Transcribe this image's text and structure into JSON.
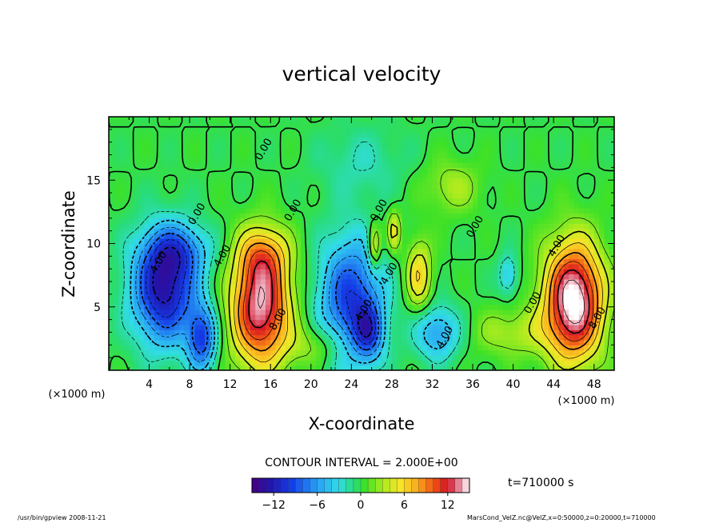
{
  "chart_data": {
    "type": "heatmap",
    "title": "vertical velocity",
    "xlabel": "X-coordinate",
    "ylabel": "Z-coordinate",
    "x_unit": "(×1000 m)",
    "y_unit": "(×1000 m)",
    "xlim": [
      0,
      50
    ],
    "ylim": [
      0,
      20
    ],
    "x_ticks": [
      4,
      8,
      12,
      16,
      20,
      24,
      28,
      32,
      36,
      40,
      44,
      48
    ],
    "y_ticks": [
      5,
      10,
      15
    ],
    "contour_interval_text": "CONTOUR INTERVAL = 2.000E+00",
    "contour_labels": [
      {
        "text": "0.00",
        "x": 15.6,
        "y": 17.3
      },
      {
        "text": "0.00",
        "x": 18.5,
        "y": 12.5
      },
      {
        "text": "0.00",
        "x": 9.0,
        "y": 12.2
      },
      {
        "text": "0.00",
        "x": 27.0,
        "y": 12.5
      },
      {
        "text": "0.00",
        "x": 36.5,
        "y": 11.2
      },
      {
        "text": "4.00",
        "x": 11.5,
        "y": 8.9
      },
      {
        "text": "4.00",
        "x": 5.2,
        "y": 8.4
      },
      {
        "text": "4.00",
        "x": 28.0,
        "y": 7.5
      },
      {
        "text": "4.00",
        "x": 25.5,
        "y": 4.6
      },
      {
        "text": "4.00",
        "x": 33.5,
        "y": 2.5
      },
      {
        "text": "4.00",
        "x": 44.6,
        "y": 9.7
      },
      {
        "text": "0.00",
        "x": 42.2,
        "y": 5.2
      },
      {
        "text": "8.00",
        "x": 17.0,
        "y": 3.9
      },
      {
        "text": "8.00",
        "x": 48.6,
        "y": 4.0
      }
    ],
    "colorbar": {
      "min": -15,
      "max": 15,
      "tick_values": [
        -12,
        -6,
        0,
        6,
        12
      ],
      "tick_labels": [
        "−12",
        "−6",
        "0",
        "6",
        "12"
      ]
    },
    "features": [
      {
        "x": 5.5,
        "z": 6.5,
        "value": -13,
        "sx": 2.2,
        "sy": 3.0
      },
      {
        "x": 9.2,
        "z": 2.5,
        "value": -9,
        "sx": 1.0,
        "sy": 1.8
      },
      {
        "x": 7.0,
        "z": 9.5,
        "value": -5,
        "sx": 2.2,
        "sy": 1.4
      },
      {
        "x": 15.0,
        "z": 5.0,
        "value": 14,
        "sx": 2.0,
        "sy": 3.2
      },
      {
        "x": 15.3,
        "z": 9.2,
        "value": 5,
        "sx": 1.8,
        "sy": 1.6
      },
      {
        "x": 24.0,
        "z": 5.5,
        "value": -10,
        "sx": 2.2,
        "sy": 3.5
      },
      {
        "x": 25.7,
        "z": 3.0,
        "value": -7,
        "sx": 1.0,
        "sy": 1.5
      },
      {
        "x": 26.3,
        "z": 9.8,
        "value": 6,
        "sx": 0.45,
        "sy": 1.3
      },
      {
        "x": 28.2,
        "z": 11.0,
        "value": 5,
        "sx": 0.5,
        "sy": 1.2
      },
      {
        "x": 30.7,
        "z": 7.5,
        "value": 6,
        "sx": 0.9,
        "sy": 2.0
      },
      {
        "x": 32.5,
        "z": 3.0,
        "value": -6,
        "sx": 1.6,
        "sy": 1.5
      },
      {
        "x": 34.0,
        "z": 14.5,
        "value": 3,
        "sx": 2.0,
        "sy": 1.5
      },
      {
        "x": 39.5,
        "z": 7.5,
        "value": -4,
        "sx": 0.7,
        "sy": 1.2
      },
      {
        "x": 46.0,
        "z": 5.5,
        "value": 16,
        "sx": 2.0,
        "sy": 3.2
      },
      {
        "x": 40.0,
        "z": 3.0,
        "value": 3,
        "sx": 3.0,
        "sy": 1.4
      },
      {
        "x": 21.0,
        "z": 2.0,
        "value": 3,
        "sx": 2.5,
        "sy": 1.2
      },
      {
        "x": 25.0,
        "z": 16.5,
        "value": -2,
        "sx": 3.0,
        "sy": 2.0
      }
    ],
    "time_label": "t=710000 s"
  },
  "footer": {
    "left": "/usr/bin/gpview   2008-11-21",
    "right": "MarsCond_VelZ.nc@VelZ,x=0:50000,z=0:20000,t=710000"
  }
}
